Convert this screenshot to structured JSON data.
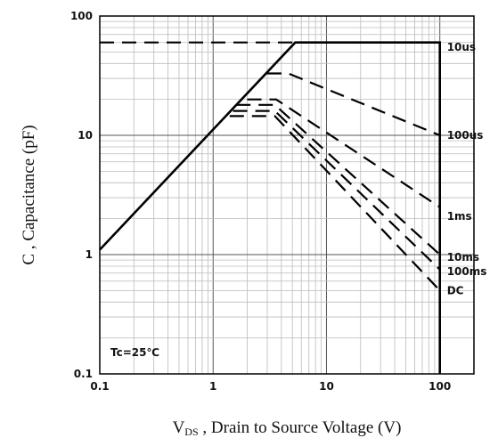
{
  "chart_data": {
    "type": "line",
    "title": "",
    "xlabel": "V",
    "xlabel_subscript": "DS",
    "xlabel_rest": " , Drain to Source Voltage (V)",
    "ylabel": "C , Capacitance (pF)",
    "xscale": "log",
    "yscale": "log",
    "xlim": [
      0.1,
      200
    ],
    "ylim": [
      0.1,
      100
    ],
    "x_ticks": [
      0.1,
      1,
      10,
      100
    ],
    "x_tick_labels": [
      "0.1",
      "1",
      "10",
      "100"
    ],
    "y_ticks": [
      0.1,
      1,
      10,
      100
    ],
    "y_tick_labels": [
      "0.1",
      "1",
      "10",
      "100"
    ],
    "grid": true,
    "annotation": "Tc=25℃",
    "colors": {
      "line": "#000000",
      "major_grid": "#555555",
      "minor_grid": "#bbbbbb"
    },
    "series": [
      {
        "name": "10us",
        "style": "dashed",
        "points": [
          [
            0.1,
            60
          ],
          [
            5.3,
            60
          ],
          [
            16,
            60
          ],
          [
            100,
            60
          ]
        ],
        "label_point": [
          100,
          55
        ]
      },
      {
        "name": "100us",
        "style": "dashed",
        "points": [
          [
            3.0,
            33
          ],
          [
            4.6,
            33
          ],
          [
            100,
            10
          ]
        ],
        "label_point": [
          100,
          10
        ]
      },
      {
        "name": "1ms",
        "style": "dashed",
        "points": [
          [
            2.0,
            20
          ],
          [
            3.6,
            20
          ],
          [
            100,
            2.5
          ]
        ],
        "label_point": [
          100,
          2.1
        ]
      },
      {
        "name": "10ms",
        "style": "dashed",
        "points": [
          [
            1.6,
            18
          ],
          [
            3.5,
            18
          ],
          [
            100,
            1.0
          ]
        ],
        "label_point": [
          100,
          0.95
        ]
      },
      {
        "name": "100ms",
        "style": "dashed",
        "points": [
          [
            1.5,
            16
          ],
          [
            3.5,
            16
          ],
          [
            100,
            0.75
          ]
        ],
        "label_point": [
          100,
          0.72
        ]
      },
      {
        "name": "DC",
        "style": "dashed",
        "points": [
          [
            1.4,
            14.5
          ],
          [
            3.5,
            14.5
          ],
          [
            100,
            0.5
          ]
        ],
        "label_point": [
          100,
          0.5
        ]
      },
      {
        "name": "",
        "style": "solid",
        "points": [
          [
            0.1,
            1.1
          ],
          [
            5.3,
            60
          ],
          [
            100,
            60
          ],
          [
            100,
            0.1
          ]
        ]
      }
    ]
  }
}
